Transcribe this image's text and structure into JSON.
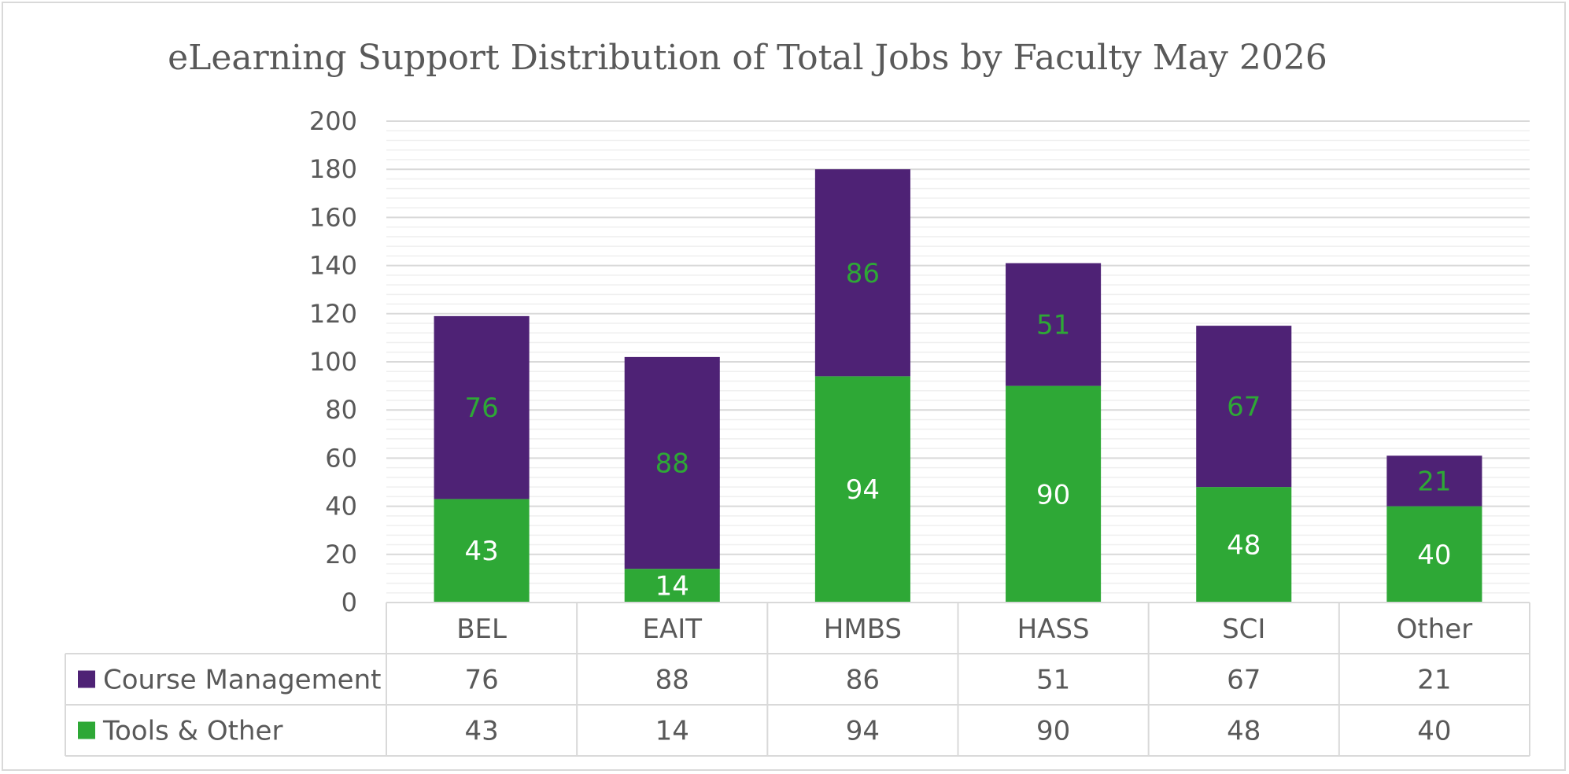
{
  "chart_data": {
    "type": "bar",
    "stacked": true,
    "title": "eLearning Support Distribution of Total Jobs by Faculty May 2026",
    "categories": [
      "BEL",
      "EAIT",
      "HMBS",
      "HASS",
      "SCI",
      "Other"
    ],
    "series": [
      {
        "name": "Course Management",
        "values": [
          76,
          88,
          86,
          51,
          67,
          21
        ],
        "color": "#4e2275",
        "label_color": "#2ea836"
      },
      {
        "name": "Tools & Other",
        "values": [
          43,
          14,
          94,
          90,
          48,
          40
        ],
        "color": "#2ea836",
        "label_color": "#ffffff"
      }
    ],
    "ylim": [
      0,
      200
    ],
    "yticks": [
      0,
      20,
      40,
      60,
      80,
      100,
      120,
      140,
      160,
      180,
      200
    ],
    "grid": true,
    "data_table": true
  }
}
